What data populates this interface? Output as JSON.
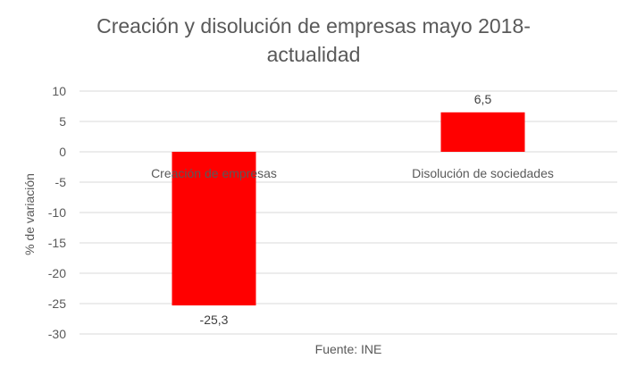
{
  "chart_data": {
    "type": "bar",
    "title_line1": "Creación y disolución de empresas mayo 2018-",
    "title_line2": "actualidad",
    "xlabel": "Fuente: INE",
    "ylabel": "% de variación",
    "categories": [
      "Creación de empresas",
      "Disolución de sociedades"
    ],
    "values": [
      -25.3,
      6.5
    ],
    "data_labels": [
      "-25,3",
      "6,5"
    ],
    "ylim": [
      -30,
      10
    ],
    "yticks": [
      10,
      5,
      0,
      -5,
      -10,
      -15,
      -20,
      -25,
      -30
    ],
    "grid": true,
    "legend": "none",
    "bar_color": "#ff0000"
  }
}
